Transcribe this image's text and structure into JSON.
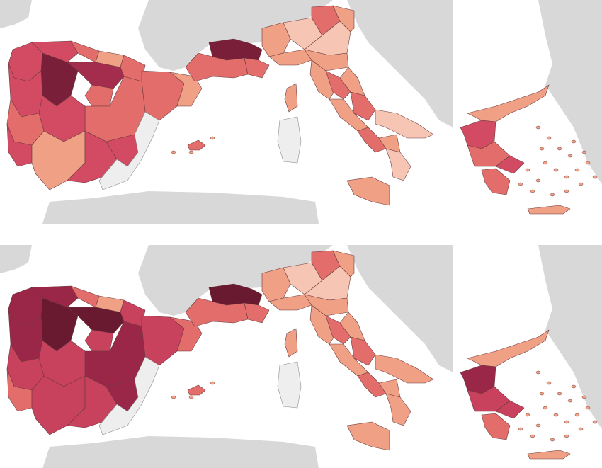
{
  "figure": {
    "panels": [
      {
        "id": "top",
        "legend": null,
        "palette": {
          "c1": "#f6c5b3",
          "c2": "#f0a085",
          "c3": "#e36d6a",
          "c4": "#d24b62",
          "c5": "#a42c4d",
          "c6": "#7a1f3a",
          "nodata": "#eeeeee",
          "land": "#d8d8d8"
        }
      },
      {
        "id": "bottom",
        "legend": null,
        "palette": {
          "c1": "#f6c5b3",
          "c2": "#f0a085",
          "c3": "#e36d6a",
          "c4": "#c8415d",
          "c5": "#9b2748",
          "c6": "#6a1a30",
          "nodata": "#eeeeee",
          "land": "#d8d8d8"
        }
      }
    ],
    "region_classes": {
      "top": {
        "galicia": "c4",
        "asturias": "c4",
        "cantabria": "c3",
        "basque": "c2",
        "navarra": "c3",
        "aragon": "c3",
        "catalonia": "c2",
        "castilla_leon_w": "c6",
        "castilla_leon_e": "c5",
        "madrid": "c3",
        "castilla_lm": "c3",
        "extremadura": "c4",
        "andalusia_w": "c2",
        "andalusia_e": "c4",
        "valencia": "nodata",
        "murcia": "c4",
        "portugal_n": "c4",
        "portugal_c": "c3",
        "portugal_s": "c4",
        "occitanie": "c3",
        "paca_w": "c6",
        "paca_e": "c3",
        "piemonte": "c2",
        "lombardia": "c1",
        "veneto": "c1",
        "trentino": "c3",
        "friuli": "c2",
        "liguria": "c2",
        "emilia": "c2",
        "toscana": "c2",
        "umbria": "c3",
        "marche": "c2",
        "lazio": "c2",
        "abruzzo": "c3",
        "campania": "c3",
        "puglia": "c1",
        "basilicata": "c2",
        "calabria": "c1",
        "sicilia": "c2",
        "sardegna": "nodata",
        "corsica": "c2",
        "gr_north": "c2",
        "gr_thessaly": "c4",
        "gr_centre": "c3",
        "gr_pelop": "c3",
        "gr_attica": "c4",
        "gr_islands": "c2",
        "balearic": "c3"
      },
      "bottom": {
        "galicia": "c5",
        "asturias": "c5",
        "cantabria": "c3",
        "basque": "c2",
        "navarra": "c4",
        "aragon": "c4",
        "catalonia": "c3",
        "castilla_leon_w": "c6",
        "castilla_leon_e": "c6",
        "madrid": "c4",
        "castilla_lm": "c5",
        "extremadura": "c4",
        "andalusia_w": "c4",
        "andalusia_e": "c4",
        "valencia": "nodata",
        "murcia": "c5",
        "portugal_n": "c5",
        "portugal_c": "c4",
        "portugal_s": "c3",
        "occitanie": "c3",
        "paca_w": "c6",
        "paca_e": "c3",
        "piemonte": "c2",
        "lombardia": "c1",
        "veneto": "c1",
        "trentino": "c3",
        "friuli": "c2",
        "liguria": "c2",
        "emilia": "c2",
        "toscana": "c2",
        "umbria": "c3",
        "marche": "c2",
        "lazio": "c2",
        "abruzzo": "c3",
        "campania": "c3",
        "puglia": "c2",
        "basilicata": "c2",
        "calabria": "c2",
        "sicilia": "c2",
        "sardegna": "nodata",
        "corsica": "c2",
        "gr_north": "c2",
        "gr_thessaly": "c5",
        "gr_centre": "c4",
        "gr_pelop": "c3",
        "gr_attica": "c4",
        "gr_islands": "c2",
        "balearic": "c3"
      }
    }
  }
}
